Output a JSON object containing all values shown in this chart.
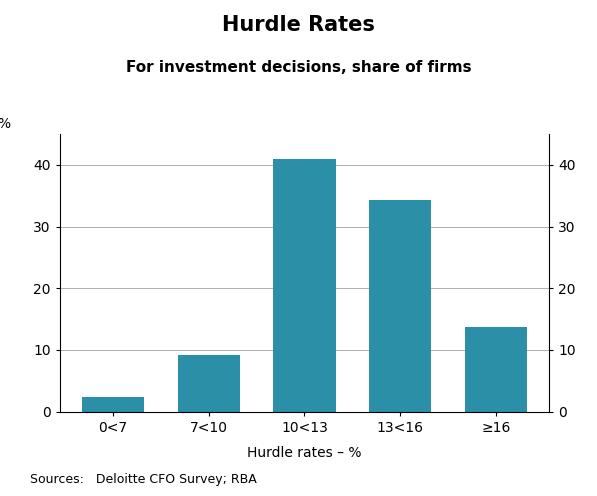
{
  "title": "Hurdle Rates",
  "subtitle": "For investment decisions, share of firms",
  "categories": [
    "0<7",
    "7<10",
    "10<13",
    "13<16",
    "≥16"
  ],
  "values": [
    2.3,
    9.2,
    41.0,
    34.3,
    13.8
  ],
  "bar_color": "#2b8fa8",
  "ylabel_left": "%",
  "ylabel_right": "%",
  "xlabel": "Hurdle rates – %",
  "ylim": [
    0,
    45
  ],
  "yticks": [
    0,
    10,
    20,
    30,
    40
  ],
  "source_text": "Sources:   Deloitte CFO Survey; RBA",
  "background_color": "#ffffff",
  "title_fontsize": 15,
  "subtitle_fontsize": 11,
  "tick_fontsize": 10,
  "label_fontsize": 10,
  "source_fontsize": 9
}
